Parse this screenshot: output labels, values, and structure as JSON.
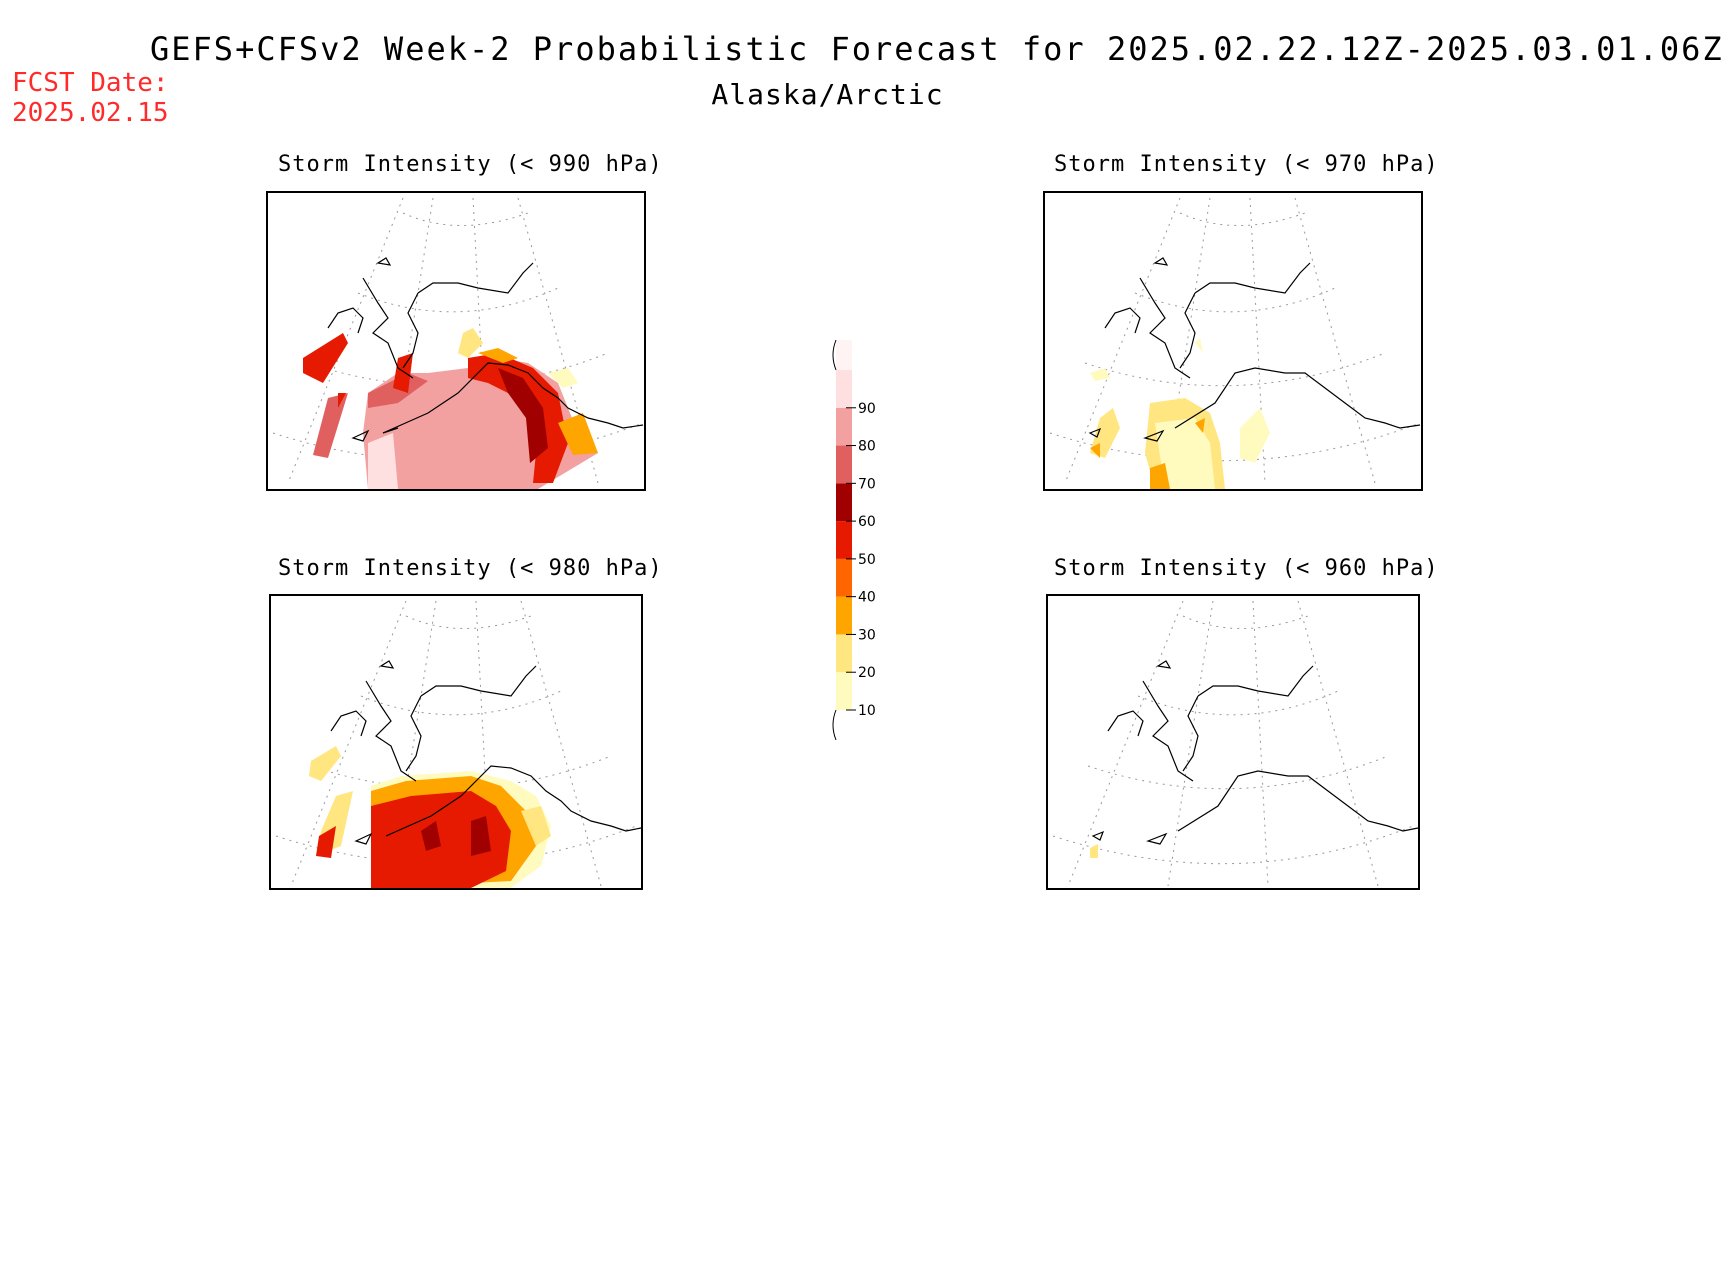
{
  "header": {
    "title": "GEFS+CFSv2 Week-2 Probabilistic Forecast for 2025.02.22.12Z-2025.03.01.06Z",
    "subtitle": "Alaska/Arctic",
    "fcst_label": "FCST Date:",
    "fcst_date": "2025.02.15"
  },
  "panels": [
    {
      "title": "Storm Intensity (< 990 hPa)",
      "threshold_hPa": 990,
      "max_probability": 90
    },
    {
      "title": "Storm Intensity (< 970 hPa)",
      "threshold_hPa": 970,
      "max_probability": 30
    },
    {
      "title": "Storm Intensity (< 980 hPa)",
      "threshold_hPa": 980,
      "max_probability": 70
    },
    {
      "title": "Storm Intensity (< 960 hPa)",
      "threshold_hPa": 960,
      "max_probability": 20
    }
  ],
  "colorbar": {
    "levels": [
      "10",
      "20",
      "30",
      "40",
      "50",
      "60",
      "70",
      "80",
      "90"
    ],
    "colors": [
      "#fffbbf",
      "#ffe680",
      "#ffa500",
      "#ff6600",
      "#e61a00",
      "#a00000",
      "#e06060",
      "#f2a0a0",
      "#ffe0e0"
    ]
  }
}
